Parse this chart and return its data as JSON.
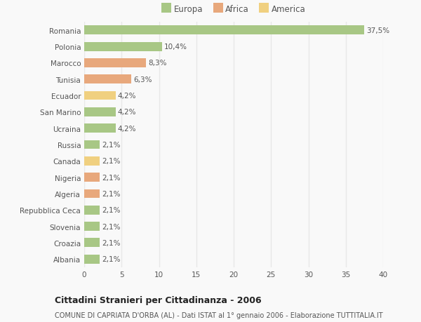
{
  "categories": [
    "Romania",
    "Polonia",
    "Marocco",
    "Tunisia",
    "Ecuador",
    "San Marino",
    "Ucraina",
    "Russia",
    "Canada",
    "Nigeria",
    "Algeria",
    "Repubblica Ceca",
    "Slovenia",
    "Croazia",
    "Albania"
  ],
  "values": [
    37.5,
    10.4,
    8.3,
    6.3,
    4.2,
    4.2,
    4.2,
    2.1,
    2.1,
    2.1,
    2.1,
    2.1,
    2.1,
    2.1,
    2.1
  ],
  "labels": [
    "37,5%",
    "10,4%",
    "8,3%",
    "6,3%",
    "4,2%",
    "4,2%",
    "4,2%",
    "2,1%",
    "2,1%",
    "2,1%",
    "2,1%",
    "2,1%",
    "2,1%",
    "2,1%",
    "2,1%"
  ],
  "colors": [
    "#a8c785",
    "#a8c785",
    "#e8a87c",
    "#e8a87c",
    "#f0d080",
    "#a8c785",
    "#a8c785",
    "#a8c785",
    "#f0d080",
    "#e8a87c",
    "#e8a87c",
    "#a8c785",
    "#a8c785",
    "#a8c785",
    "#a8c785"
  ],
  "legend_labels": [
    "Europa",
    "Africa",
    "America"
  ],
  "legend_colors": [
    "#a8c785",
    "#e8a87c",
    "#f0d080"
  ],
  "xlim": [
    0,
    40
  ],
  "xticks": [
    0,
    5,
    10,
    15,
    20,
    25,
    30,
    35,
    40
  ],
  "title": "Cittadini Stranieri per Cittadinanza - 2006",
  "subtitle": "COMUNE DI CAPRIATA D'ORBA (AL) - Dati ISTAT al 1° gennaio 2006 - Elaborazione TUTTITALIA.IT",
  "background_color": "#f9f9f9",
  "grid_color": "#e8e8e8",
  "bar_height": 0.55,
  "label_fontsize": 7.5,
  "tick_fontsize": 7.5,
  "legend_fontsize": 8.5,
  "title_fontsize": 9.0,
  "subtitle_fontsize": 7.0
}
